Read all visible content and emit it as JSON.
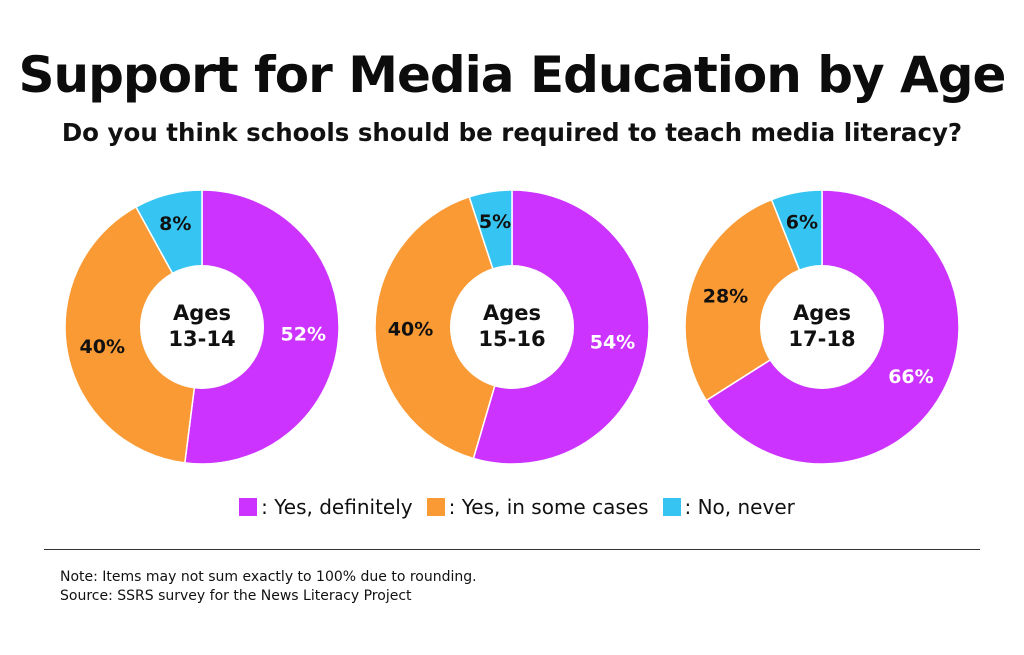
{
  "title": "Support for Media Education by Age",
  "subtitle": "Do you think schools should be required to teach media literacy?",
  "colors": {
    "yes_definitely": "#cc33ff",
    "yes_some": "#fa9a35",
    "no_never": "#36c5f2"
  },
  "legend": [
    {
      "label": ": Yes, definitely",
      "color": "#cc33ff"
    },
    {
      "label": ": Yes, in some cases",
      "color": "#fa9a35"
    },
    {
      "label": ": No, never",
      "color": "#36c5f2"
    }
  ],
  "chart_data": [
    {
      "type": "pie",
      "center_label": [
        "Ages",
        "13-14"
      ],
      "slices": [
        {
          "category": "Yes, definitely",
          "value": 52,
          "label": "52%"
        },
        {
          "category": "Yes, in some cases",
          "value": 40,
          "label": "40%"
        },
        {
          "category": "No, never",
          "value": 8,
          "label": "8%"
        }
      ]
    },
    {
      "type": "pie",
      "center_label": [
        "Ages",
        "15-16"
      ],
      "slices": [
        {
          "category": "Yes, definitely",
          "value": 54,
          "label": "54%"
        },
        {
          "category": "Yes, in some cases",
          "value": 40,
          "label": "40%"
        },
        {
          "category": "No, never",
          "value": 5,
          "label": "5%"
        }
      ]
    },
    {
      "type": "pie",
      "center_label": [
        "Ages",
        "17-18"
      ],
      "slices": [
        {
          "category": "Yes, definitely",
          "value": 66,
          "label": "66%"
        },
        {
          "category": "Yes, in some cases",
          "value": 28,
          "label": "28%"
        },
        {
          "category": "No, never",
          "value": 6,
          "label": "6%"
        }
      ]
    }
  ],
  "notes": {
    "note": "Note: Items may not sum exactly to 100% due to rounding.",
    "source": "Source: SSRS survey for the News Literacy Project"
  }
}
